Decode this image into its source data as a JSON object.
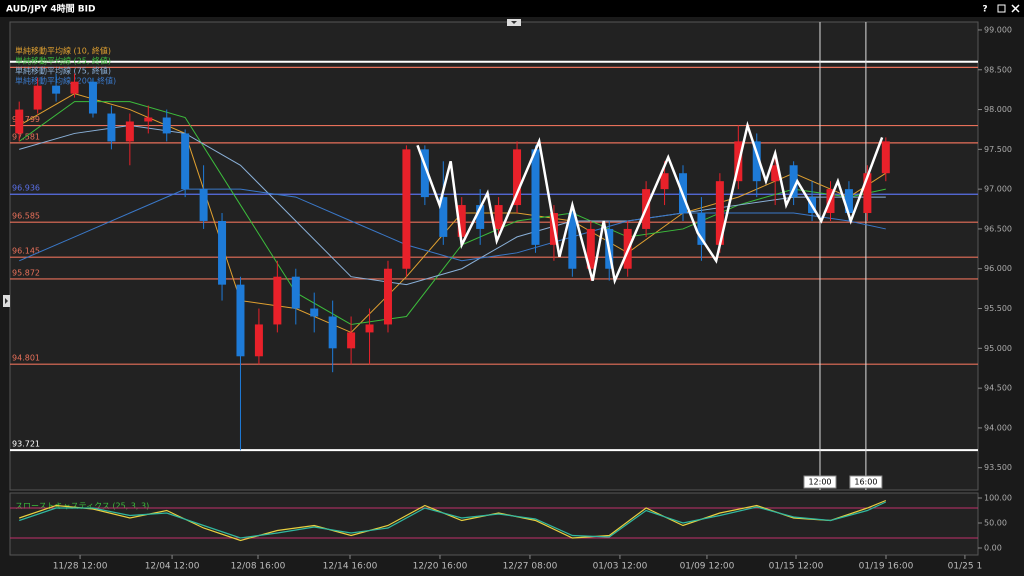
{
  "window": {
    "title": "AUD/JPY 4時間 BID",
    "help": "?"
  },
  "chart_data": {
    "type": "candlestick",
    "up_color": "#e8212a",
    "down_color": "#1e7bd8",
    "xlim": [
      -0.5,
      52.0
    ],
    "xticks": [
      {
        "value": 3.3,
        "label": "11/28 12:00"
      },
      {
        "value": 8.29,
        "label": "12/04 12:00"
      },
      {
        "value": 12.95,
        "label": "12/08 16:00"
      },
      {
        "value": 17.94,
        "label": "12/14 16:00"
      },
      {
        "value": 22.82,
        "label": "12/20 16:00"
      },
      {
        "value": 27.7,
        "label": "12/27 08:00"
      },
      {
        "value": 32.58,
        "label": "01/03 12:00"
      },
      {
        "value": 37.3,
        "label": "01/09 12:00"
      },
      {
        "value": 42.13,
        "label": "01/15 12:00"
      },
      {
        "value": 47.01,
        "label": "01/19 16:00"
      },
      {
        "value": 51.29,
        "label": "01/25 1"
      }
    ],
    "ylim": [
      93.22,
      99.1
    ],
    "yticks": [
      {
        "value": 93.5,
        "label": "93.500"
      },
      {
        "value": 94,
        "label": "94.000"
      },
      {
        "value": 94.5,
        "label": "94.500"
      },
      {
        "value": 95,
        "label": "95.000"
      },
      {
        "value": 95.5,
        "label": "95.500"
      },
      {
        "value": 96,
        "label": "96.000"
      },
      {
        "value": 96.5,
        "label": "96.500"
      },
      {
        "value": 97,
        "label": "97.000"
      },
      {
        "value": 97.5,
        "label": "97.500"
      },
      {
        "value": 98,
        "label": "98.000"
      },
      {
        "value": 98.5,
        "label": "98.500"
      },
      {
        "value": 99,
        "label": "99.000"
      }
    ],
    "candles": [
      [
        97.7,
        98.1,
        97.6,
        98.0
      ],
      [
        98.0,
        98.4,
        97.95,
        98.3
      ],
      [
        98.3,
        98.45,
        98.1,
        98.2
      ],
      [
        98.2,
        98.45,
        98.15,
        98.35
      ],
      [
        98.35,
        98.4,
        97.9,
        97.95
      ],
      [
        97.95,
        98.05,
        97.5,
        97.6
      ],
      [
        97.6,
        97.95,
        97.3,
        97.85
      ],
      [
        97.85,
        98.05,
        97.7,
        97.9
      ],
      [
        97.9,
        98.0,
        97.6,
        97.7
      ],
      [
        97.7,
        97.75,
        96.9,
        97.0
      ],
      [
        97.0,
        97.3,
        96.5,
        96.6
      ],
      [
        96.6,
        96.7,
        95.6,
        95.8
      ],
      [
        95.8,
        95.9,
        93.72,
        94.9
      ],
      [
        94.9,
        95.5,
        94.8,
        95.3
      ],
      [
        95.3,
        96.1,
        95.2,
        95.9
      ],
      [
        95.9,
        96.0,
        95.3,
        95.5
      ],
      [
        95.5,
        95.7,
        95.2,
        95.4
      ],
      [
        95.4,
        95.6,
        94.7,
        95.0
      ],
      [
        95.0,
        95.4,
        94.8,
        95.2
      ],
      [
        95.2,
        95.5,
        94.8,
        95.3
      ],
      [
        95.3,
        96.1,
        95.2,
        96.0
      ],
      [
        96.0,
        97.55,
        95.9,
        97.5
      ],
      [
        97.5,
        97.55,
        96.8,
        96.9
      ],
      [
        96.9,
        97.35,
        96.3,
        96.4
      ],
      [
        96.4,
        96.9,
        96.3,
        96.8
      ],
      [
        96.8,
        97.0,
        96.3,
        96.5
      ],
      [
        96.5,
        96.9,
        96.4,
        96.8
      ],
      [
        96.8,
        97.6,
        96.7,
        97.5
      ],
      [
        97.5,
        97.55,
        96.2,
        96.3
      ],
      [
        96.3,
        96.8,
        96.1,
        96.7
      ],
      [
        96.7,
        96.75,
        95.9,
        96.0
      ],
      [
        96.0,
        96.6,
        95.85,
        96.5
      ],
      [
        96.5,
        96.6,
        95.85,
        96.0
      ],
      [
        96.0,
        96.6,
        95.9,
        96.5
      ],
      [
        96.5,
        97.1,
        96.4,
        97.0
      ],
      [
        97.0,
        97.35,
        96.8,
        97.2
      ],
      [
        97.2,
        97.3,
        96.6,
        96.7
      ],
      [
        96.7,
        96.9,
        96.1,
        96.3
      ],
      [
        96.3,
        97.2,
        96.2,
        97.1
      ],
      [
        97.1,
        97.8,
        97.0,
        97.6
      ],
      [
        97.6,
        97.7,
        96.9,
        97.1
      ],
      [
        97.1,
        97.4,
        96.8,
        97.3
      ],
      [
        97.3,
        97.35,
        96.8,
        96.9
      ],
      [
        96.9,
        97.1,
        96.6,
        96.7
      ],
      [
        96.7,
        97.1,
        96.6,
        97.0
      ],
      [
        97.0,
        97.1,
        96.6,
        96.7
      ],
      [
        96.7,
        97.3,
        96.6,
        97.2
      ],
      [
        97.2,
        97.65,
        97.1,
        97.6
      ]
    ],
    "ma_x": [
      0,
      3,
      6,
      9,
      12,
      15,
      18,
      21,
      24,
      27,
      30,
      33,
      36,
      39,
      42,
      45,
      47
    ],
    "moving_averages": [
      {
        "name": "単純移動平均線 (10, 終値)",
        "color": "#e0a030",
        "values": [
          97.8,
          98.2,
          98.0,
          97.7,
          95.6,
          95.5,
          95.2,
          95.9,
          96.7,
          96.7,
          96.6,
          96.2,
          96.7,
          96.9,
          97.2,
          96.9,
          97.2
        ]
      },
      {
        "name": "単純移動平均線 (25, 終値)",
        "color": "#3cbc3c",
        "values": [
          97.6,
          98.1,
          98.1,
          97.9,
          96.8,
          95.7,
          95.3,
          95.4,
          96.3,
          96.6,
          96.7,
          96.4,
          96.5,
          96.8,
          97.0,
          96.9,
          97.0
        ]
      },
      {
        "name": "単純移動平均線 (75, 終値)",
        "color": "#8ab0d8",
        "values": [
          97.5,
          97.7,
          97.8,
          97.7,
          97.3,
          96.6,
          95.9,
          95.8,
          96.0,
          96.4,
          96.6,
          96.6,
          96.7,
          96.8,
          96.9,
          96.9,
          96.9
        ]
      },
      {
        "name": "単純移動平均線 (200, 終値)",
        "color": "#3a78c8",
        "values": [
          96.1,
          96.4,
          96.7,
          97.0,
          97.0,
          96.9,
          96.6,
          96.3,
          96.1,
          96.2,
          96.4,
          96.6,
          96.7,
          96.7,
          96.7,
          96.6,
          96.5
        ]
      }
    ],
    "levels": [
      {
        "value": 97.799,
        "color": "#e8705a"
      },
      {
        "value": 97.581,
        "color": "#e8705a"
      },
      {
        "value": 96.936,
        "color": "#5a70e8"
      },
      {
        "value": 96.585,
        "color": "#e8705a"
      },
      {
        "value": 96.145,
        "color": "#e8705a"
      },
      {
        "value": 95.872,
        "color": "#e8705a"
      },
      {
        "value": 94.801,
        "color": "#e8705a"
      },
      {
        "value": 93.721,
        "color": "#ffffff"
      }
    ],
    "unlabeled_levels": [
      {
        "value": 98.6,
        "color": "#ffffff"
      },
      {
        "value": 98.53,
        "color": "#e8705a"
      }
    ],
    "time_markers": [
      {
        "value": 43.43,
        "label": "12:00"
      },
      {
        "value": 45.92,
        "label": "16:00"
      }
    ],
    "zigzag": {
      "color": "#ffffff",
      "x": [
        21.6,
        22.8,
        23.4,
        24.0,
        25.4,
        25.9,
        28.2,
        29.3,
        30.0,
        31.1,
        31.7,
        32.3,
        35.2,
        36.8,
        37.8,
        39.5,
        40.5,
        41.0,
        41.6,
        42.2,
        43.5,
        44.4,
        45.1,
        46.8
      ],
      "values": [
        97.55,
        96.8,
        97.35,
        96.3,
        96.95,
        96.35,
        97.6,
        96.15,
        96.8,
        95.85,
        96.6,
        95.85,
        97.4,
        96.45,
        96.1,
        97.8,
        97.1,
        97.45,
        96.8,
        97.1,
        96.6,
        97.1,
        96.6,
        97.65
      ]
    },
    "oscillator": {
      "title": "スローストキャスティクス (25, 3, 3)",
      "ylim": [
        -14,
        110
      ],
      "yticks": [
        {
          "value": 0,
          "label": "0.00"
        },
        {
          "value": 50,
          "label": "50.00"
        },
        {
          "value": 100,
          "label": "100.00"
        }
      ],
      "bands": [
        20,
        80
      ],
      "band_color": "#c0306a",
      "x": [
        0,
        2,
        4,
        6,
        8,
        10,
        12,
        14,
        16,
        18,
        20,
        22,
        24,
        26,
        28,
        30,
        32,
        34,
        36,
        38,
        40,
        42,
        44,
        46,
        47
      ],
      "series": [
        {
          "color": "#e8d040",
          "values": [
            60,
            85,
            78,
            60,
            75,
            40,
            15,
            35,
            45,
            25,
            45,
            85,
            55,
            70,
            55,
            20,
            25,
            80,
            45,
            70,
            85,
            60,
            55,
            80,
            95
          ]
        },
        {
          "color": "#30b8a0",
          "values": [
            55,
            80,
            80,
            65,
            70,
            45,
            20,
            30,
            42,
            30,
            40,
            80,
            60,
            68,
            58,
            25,
            22,
            75,
            50,
            65,
            82,
            62,
            55,
            75,
            92
          ]
        }
      ]
    }
  }
}
